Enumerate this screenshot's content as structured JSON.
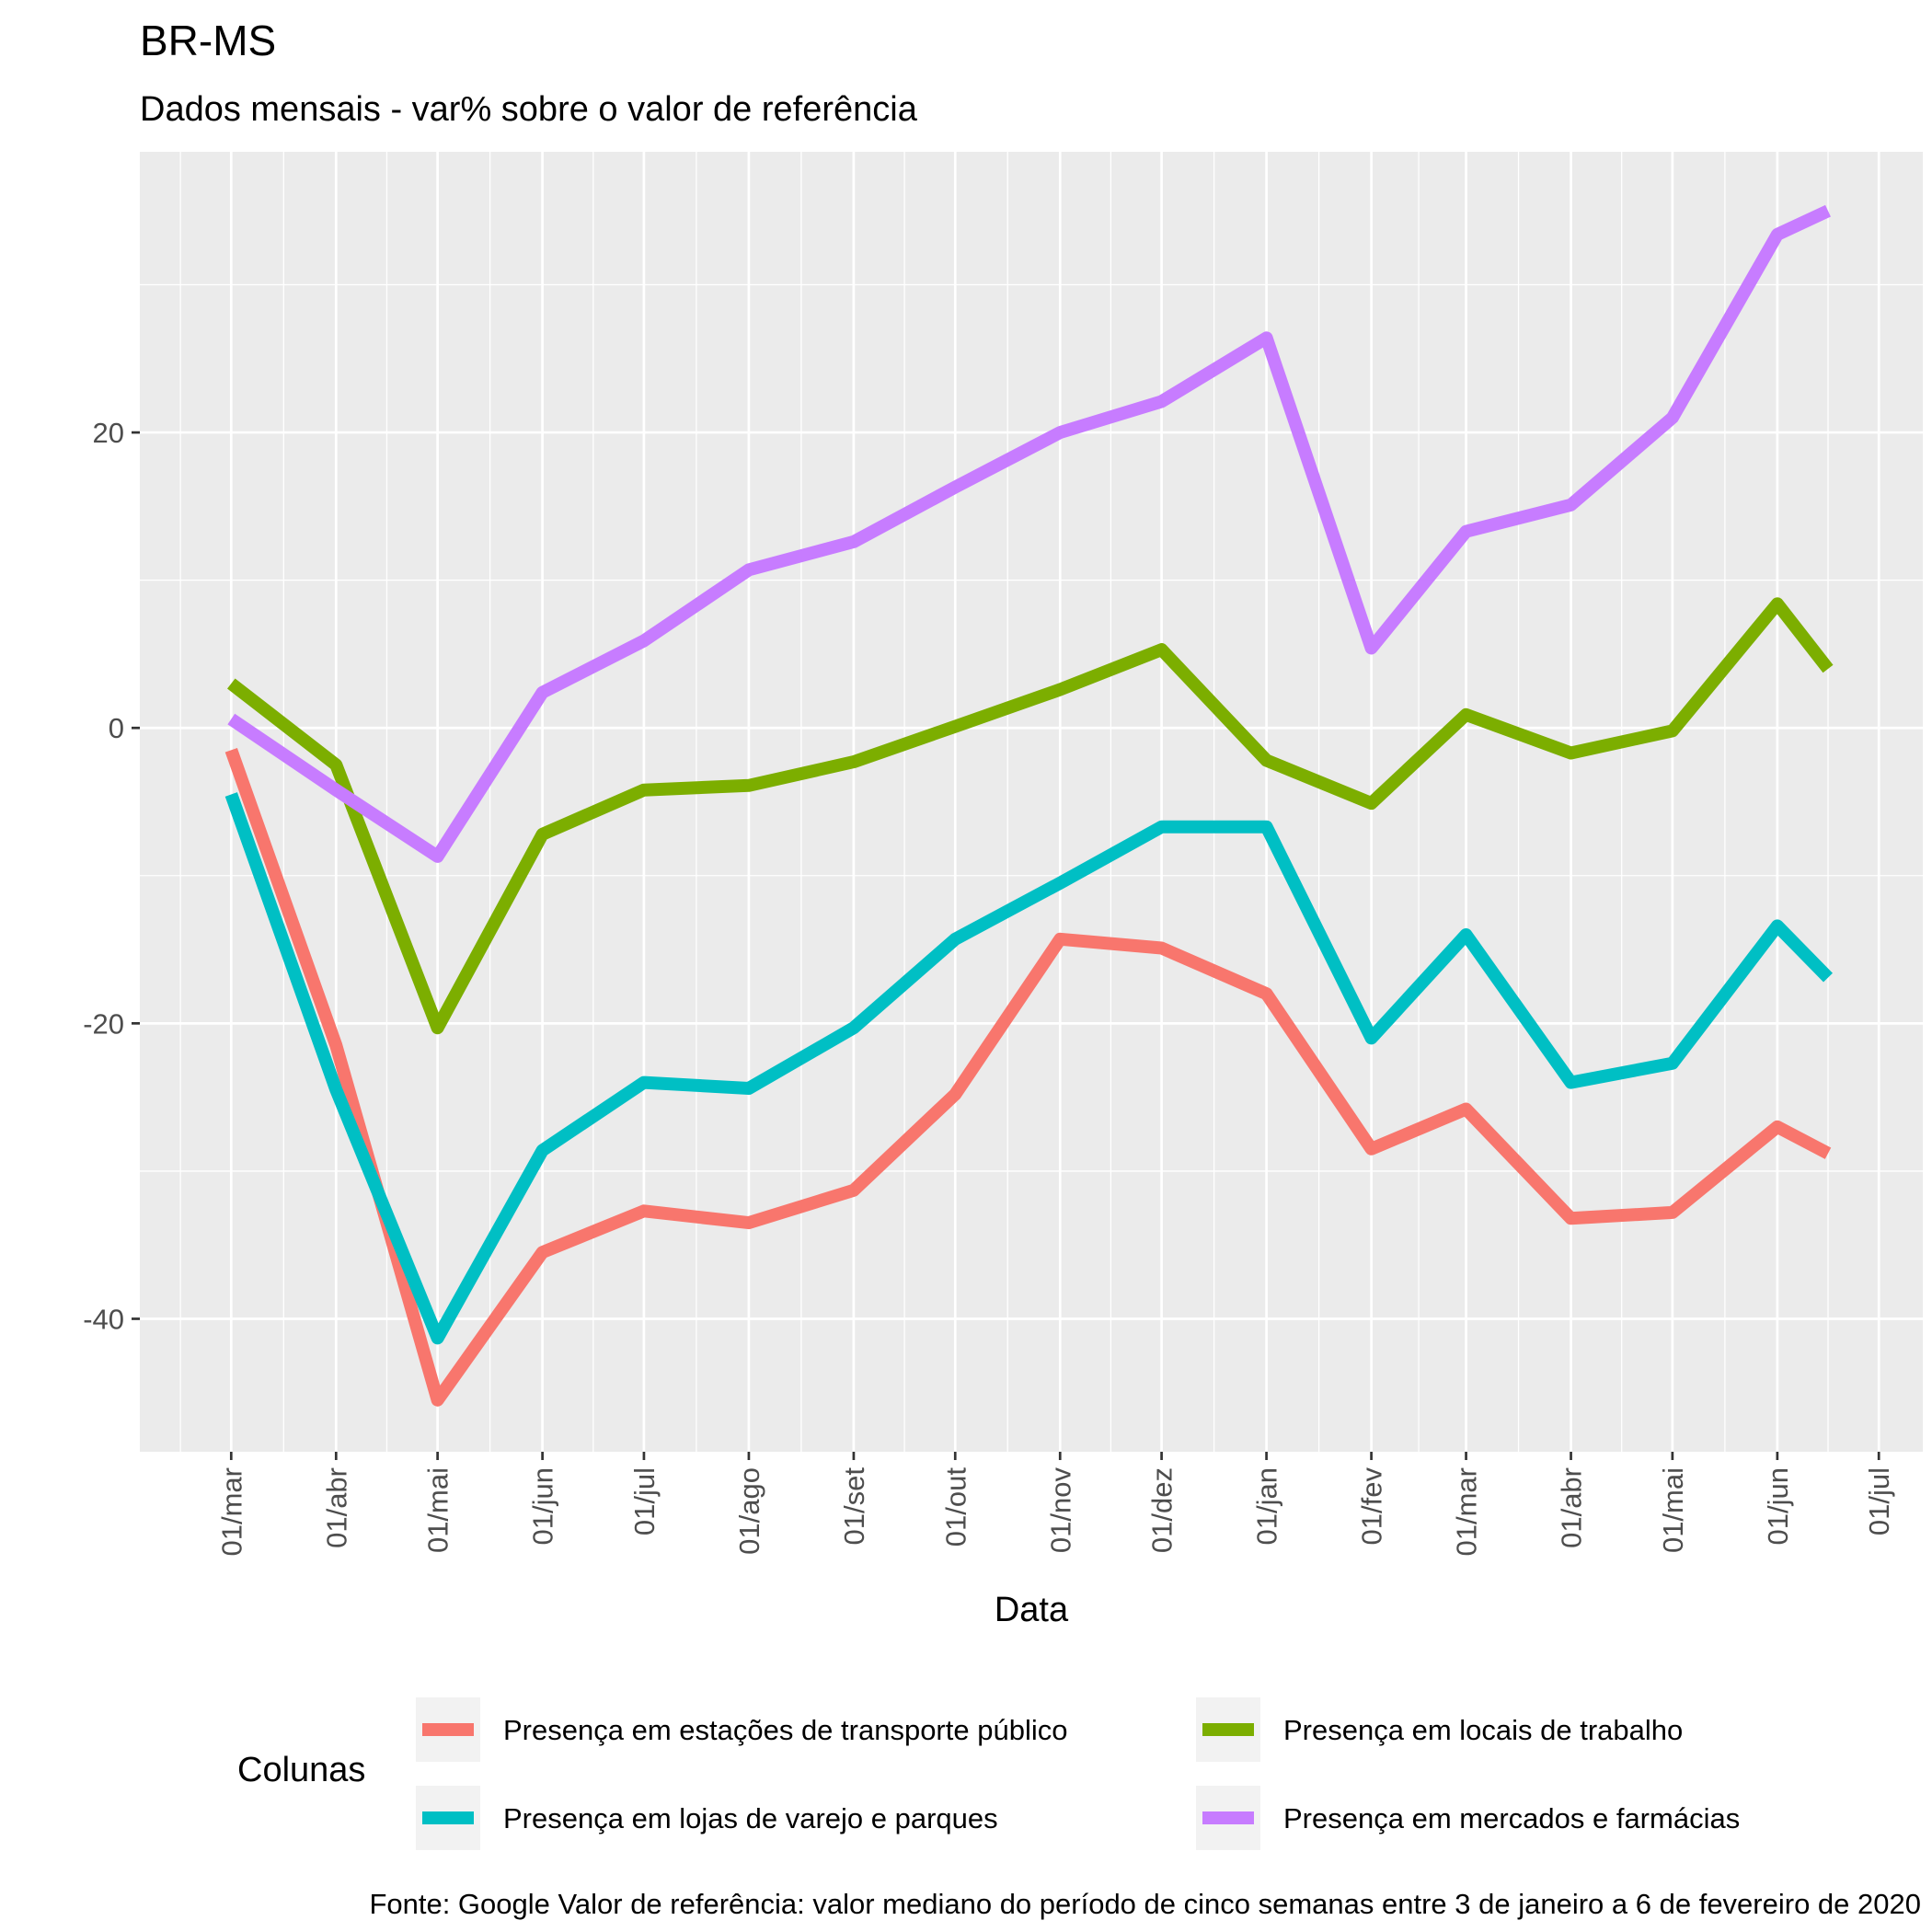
{
  "chart_data": {
    "type": "line",
    "title": "BR-MS",
    "subtitle": "Dados mensais - var% sobre o valor de referência",
    "xlabel": "Data",
    "ylabel": "",
    "caption": "Fonte: Google   Valor de referência: valor mediano do período de cinco semanas entre 3 de janeiro a 6 de fevereiro de 2020",
    "legend_title": "Colunas",
    "legend_position": "bottom",
    "grid": true,
    "ylim": [
      -49,
      39
    ],
    "y_ticks": [
      -40,
      -20,
      0,
      20
    ],
    "x_tick_labels": [
      "01/mar",
      "01/abr",
      "01/mai",
      "01/jun",
      "01/jul",
      "01/ago",
      "01/set",
      "01/out",
      "01/nov",
      "01/dez",
      "01/jan",
      "01/fev",
      "01/mar",
      "01/abr",
      "01/mai",
      "01/jun",
      "01/jul"
    ],
    "x": [
      "2020-03-01",
      "2020-04-01",
      "2020-05-01",
      "2020-06-01",
      "2020-07-01",
      "2020-08-01",
      "2020-09-01",
      "2020-10-01",
      "2020-11-01",
      "2020-12-01",
      "2021-01-01",
      "2021-02-01",
      "2021-03-01",
      "2021-04-01",
      "2021-05-01",
      "2021-06-01",
      "2021-06-16"
    ],
    "series": [
      {
        "name": "Presença em estações de transporte público",
        "color": "#F8766D",
        "values": [
          -1.5,
          -21.5,
          -45.5,
          -35.5,
          -32.7,
          -33.5,
          -31.3,
          -24.8,
          -14.3,
          -14.9,
          -18,
          -28.5,
          -25.8,
          -33.2,
          -32.8,
          -27,
          -28.8
        ]
      },
      {
        "name": "Presença em lojas de varejo e parques",
        "color": "#00BFC4",
        "values": [
          -4.5,
          -24.5,
          -41.3,
          -28.6,
          -24,
          -24.4,
          -20.3,
          -14.3,
          -10.5,
          -6.7,
          -6.7,
          -21,
          -14,
          -24,
          -22.7,
          -13.4,
          -16.9
        ]
      },
      {
        "name": "Presença em locais de trabalho",
        "color": "#7CAE00",
        "values": [
          3,
          -2.5,
          -20.3,
          -7.2,
          -4.2,
          -3.9,
          -2.3,
          0.1,
          2.6,
          5.3,
          -2.2,
          -5.1,
          0.9,
          -1.7,
          -0.2,
          8.4,
          4
        ]
      },
      {
        "name": "Presença em mercados e farmácias",
        "color": "#C77CFF",
        "values": [
          0.6,
          -4.2,
          -8.7,
          2.4,
          5.9,
          10.7,
          12.6,
          16.3,
          20,
          22.1,
          26.4,
          5.4,
          13.3,
          15.1,
          21,
          33.4,
          35
        ]
      }
    ]
  }
}
